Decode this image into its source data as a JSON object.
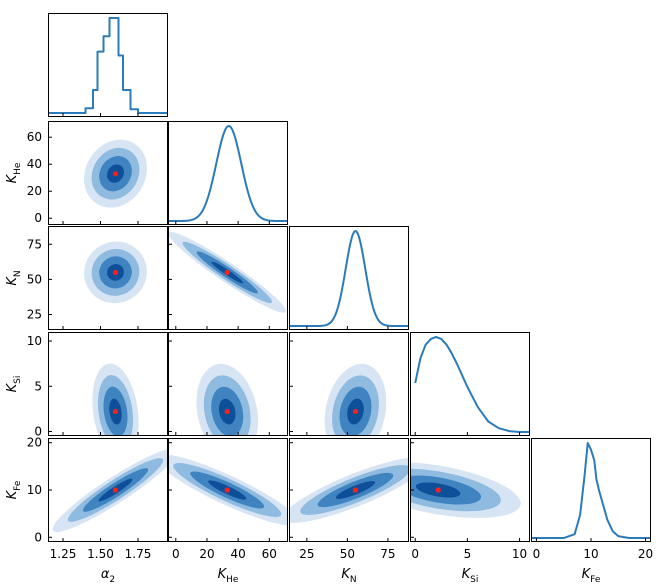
{
  "chart_data": {
    "type": "corner",
    "parameters": [
      {
        "symbol": "α",
        "subscript": "2",
        "range": [
          1.15,
          1.95
        ],
        "ticks": [
          1.25,
          1.5,
          1.75
        ],
        "tick_labels": [
          "1.25",
          "1.50",
          "1.75"
        ],
        "best_fit": 1.6
      },
      {
        "symbol": "K",
        "subscript": "He",
        "range": [
          -5,
          72
        ],
        "ticks": [
          0,
          20,
          40,
          60
        ],
        "tick_labels": [
          "0",
          "20",
          "40",
          "60"
        ],
        "best_fit": 33
      },
      {
        "symbol": "K",
        "subscript": "N",
        "range": [
          14,
          88
        ],
        "ticks": [
          25,
          50,
          75
        ],
        "tick_labels": [
          "25",
          "50",
          "75"
        ],
        "best_fit": 55
      },
      {
        "symbol": "K",
        "subscript": "Si",
        "range": [
          -0.5,
          11
        ],
        "ticks": [
          0,
          5,
          10
        ],
        "tick_labels": [
          "0",
          "5",
          "10"
        ],
        "best_fit": 2.2
      },
      {
        "symbol": "K",
        "subscript": "Fe",
        "range": [
          -1,
          21
        ],
        "ticks": [
          0,
          10,
          20
        ],
        "tick_labels": [
          "0",
          "10",
          "20"
        ],
        "best_fit": 10
      }
    ],
    "marginals": [
      {
        "param": 0,
        "kind": "step",
        "x": [
          1.15,
          1.4,
          1.45,
          1.48,
          1.52,
          1.56,
          1.62,
          1.65,
          1.7,
          1.75,
          1.95
        ],
        "y": [
          0.01,
          0.06,
          0.25,
          0.65,
          0.81,
          1.0,
          0.61,
          0.25,
          0.05,
          0.01,
          0.01
        ]
      },
      {
        "param": 1,
        "kind": "gauss",
        "mean": 34,
        "sigma": 8,
        "baseline": 0.01
      },
      {
        "param": 2,
        "kind": "gauss",
        "mean": 55,
        "sigma": 6,
        "baseline": 0.01
      },
      {
        "param": 3,
        "kind": "curve",
        "x": [
          0,
          0.5,
          1,
          1.5,
          2,
          2.5,
          3,
          3.5,
          4,
          5,
          6,
          7,
          8,
          9,
          10,
          11
        ],
        "y": [
          0.52,
          0.78,
          0.92,
          0.98,
          1.0,
          0.98,
          0.92,
          0.83,
          0.72,
          0.48,
          0.27,
          0.12,
          0.05,
          0.02,
          0.01,
          0.01
        ]
      },
      {
        "param": 4,
        "kind": "curve",
        "x": [
          -1,
          5,
          7,
          8,
          8.8,
          9.4,
          10,
          10.6,
          11,
          11.5,
          12,
          13,
          14,
          15,
          16,
          17,
          18,
          21
        ],
        "y": [
          0.01,
          0.01,
          0.05,
          0.25,
          0.65,
          1.0,
          0.93,
          0.82,
          0.62,
          0.5,
          0.4,
          0.2,
          0.08,
          0.03,
          0.02,
          0.01,
          0.01,
          0.01
        ]
      }
    ],
    "joint_panels": [
      {
        "x": 0,
        "y": 1,
        "center": [
          1.6,
          33
        ],
        "rx_frac": 0.16,
        "ry_frac": 0.22,
        "rot_deg": 32
      },
      {
        "x": 0,
        "y": 2,
        "center": [
          1.6,
          55
        ],
        "rx_frac": 0.17,
        "ry_frac": 0.19,
        "rot_deg": -28
      },
      {
        "x": 1,
        "y": 2,
        "center": [
          33,
          55
        ],
        "rx_frac": 0.38,
        "ry_frac": 0.06,
        "rot_deg": 34
      },
      {
        "x": 0,
        "y": 3,
        "center": [
          1.6,
          2.2
        ],
        "rx_frac": 0.12,
        "ry_frac": 0.3,
        "rot_deg": -8
      },
      {
        "x": 1,
        "y": 3,
        "center": [
          33,
          2.2
        ],
        "rx_frac": 0.16,
        "ry_frac": 0.3,
        "rot_deg": -12
      },
      {
        "x": 2,
        "y": 3,
        "center": [
          55,
          2.2
        ],
        "rx_frac": 0.16,
        "ry_frac": 0.3,
        "rot_deg": 12
      },
      {
        "x": 0,
        "y": 4,
        "center": [
          1.6,
          10
        ],
        "rx_frac": 0.4,
        "ry_frac": 0.08,
        "rot_deg": -33
      },
      {
        "x": 1,
        "y": 4,
        "center": [
          33,
          10
        ],
        "rx_frac": 0.42,
        "ry_frac": 0.09,
        "rot_deg": 25
      },
      {
        "x": 2,
        "y": 4,
        "center": [
          55,
          10
        ],
        "rx_frac": 0.42,
        "ry_frac": 0.1,
        "rot_deg": -22
      },
      {
        "x": 3,
        "y": 4,
        "center": [
          2.2,
          10
        ],
        "rx_frac": 0.45,
        "ry_frac": 0.15,
        "rot_deg": 10
      }
    ],
    "contour_levels": [
      "3σ",
      "2σ",
      "1σ",
      "0.5σ"
    ],
    "colors": {
      "contours": [
        "#d7e4f3",
        "#8fbbe0",
        "#3f84c1",
        "#0e4f99"
      ],
      "line": "#2b7bba",
      "best_fit_marker": "#ff1f1f",
      "axes": "#000000"
    }
  }
}
